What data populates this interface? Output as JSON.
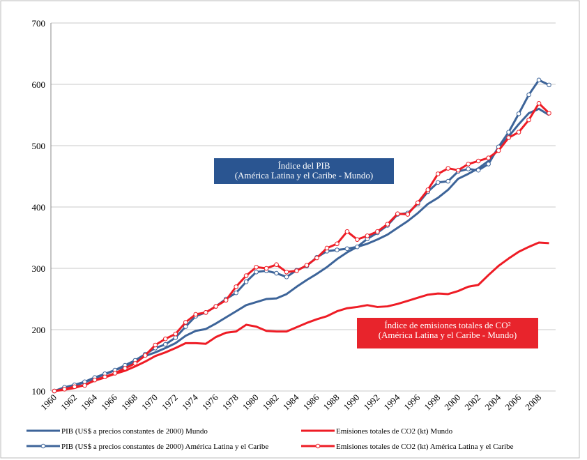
{
  "chart_data": {
    "type": "line",
    "categories": [
      "1960",
      null,
      "1962",
      null,
      "1964",
      null,
      "1966",
      null,
      "1968",
      null,
      "1970",
      null,
      "1972",
      null,
      "1974",
      null,
      "1976",
      null,
      "1978",
      null,
      "1980",
      null,
      "1982",
      null,
      "1984",
      null,
      "1986",
      null,
      "1988",
      null,
      "1990",
      null,
      "1992",
      null,
      "1994",
      null,
      "1996",
      null,
      "1998",
      null,
      "2000",
      null,
      "2002",
      null,
      "2004",
      null,
      "2006",
      null,
      "2008",
      null
    ],
    "ylim": [
      100,
      700
    ],
    "yticks": [
      100,
      200,
      300,
      400,
      500,
      600,
      700
    ],
    "grid": true,
    "legend": "bottom",
    "annotations": [
      {
        "lines": [
          "Índice del PIB",
          "(América Latina y el Caribe - Mundo)"
        ],
        "color": "#2a5591"
      },
      {
        "lines": [
          "Índice de emisiones totales de CO²",
          "(América Latina y el Caribe - Mundo)"
        ],
        "color": "#e8242c"
      }
    ],
    "series": [
      {
        "name": "PIB (US$ a precios constantes de 2000) Mundo",
        "color": "#3d6499",
        "markers": false,
        "values": [
          100,
          104,
          109,
          114,
          121,
          127,
          134,
          140,
          148,
          157,
          163,
          170,
          178,
          190,
          198,
          201,
          210,
          220,
          230,
          240,
          245,
          250,
          251,
          258,
          270,
          281,
          291,
          302,
          315,
          326,
          335,
          340,
          347,
          355,
          366,
          377,
          390,
          405,
          415,
          428,
          446,
          454,
          463,
          475,
          495,
          515,
          535,
          553,
          560,
          550
        ]
      },
      {
        "name": "Emisiones totales de CO2 (kt) Mundo",
        "color": "#ee1c25",
        "markers": false,
        "values": [
          100,
          102,
          105,
          110,
          117,
          122,
          128,
          133,
          140,
          148,
          157,
          163,
          170,
          178,
          178,
          177,
          188,
          195,
          197,
          208,
          205,
          198,
          197,
          197,
          204,
          211,
          217,
          222,
          230,
          235,
          237,
          240,
          237,
          238,
          242,
          247,
          252,
          257,
          259,
          258,
          263,
          270,
          273,
          289,
          304,
          316,
          327,
          335,
          342,
          341
        ]
      },
      {
        "name": "PIB (US$ a precios constantes de 2000) América Latina y el Caribe",
        "color": "#3d6499",
        "markers": true,
        "values": [
          100,
          106,
          110,
          115,
          122,
          128,
          134,
          142,
          150,
          160,
          170,
          176,
          187,
          205,
          222,
          228,
          238,
          250,
          260,
          278,
          294,
          296,
          292,
          286,
          297,
          304,
          318,
          328,
          330,
          332,
          335,
          348,
          358,
          370,
          388,
          390,
          405,
          425,
          440,
          442,
          458,
          462,
          460,
          470,
          498,
          522,
          552,
          583,
          607,
          599
        ]
      },
      {
        "name": "Emisiones totales de CO2 (kt) América Latina y el Caribe",
        "color": "#ee1c25",
        "markers": true,
        "values": [
          100,
          103,
          107,
          109,
          118,
          123,
          129,
          137,
          145,
          158,
          175,
          185,
          193,
          212,
          225,
          228,
          238,
          248,
          270,
          288,
          302,
          300,
          306,
          294,
          296,
          305,
          317,
          333,
          340,
          360,
          347,
          353,
          360,
          372,
          389,
          388,
          407,
          428,
          454,
          463,
          460,
          470,
          475,
          480,
          492,
          513,
          522,
          542,
          569,
          553
        ]
      }
    ]
  }
}
